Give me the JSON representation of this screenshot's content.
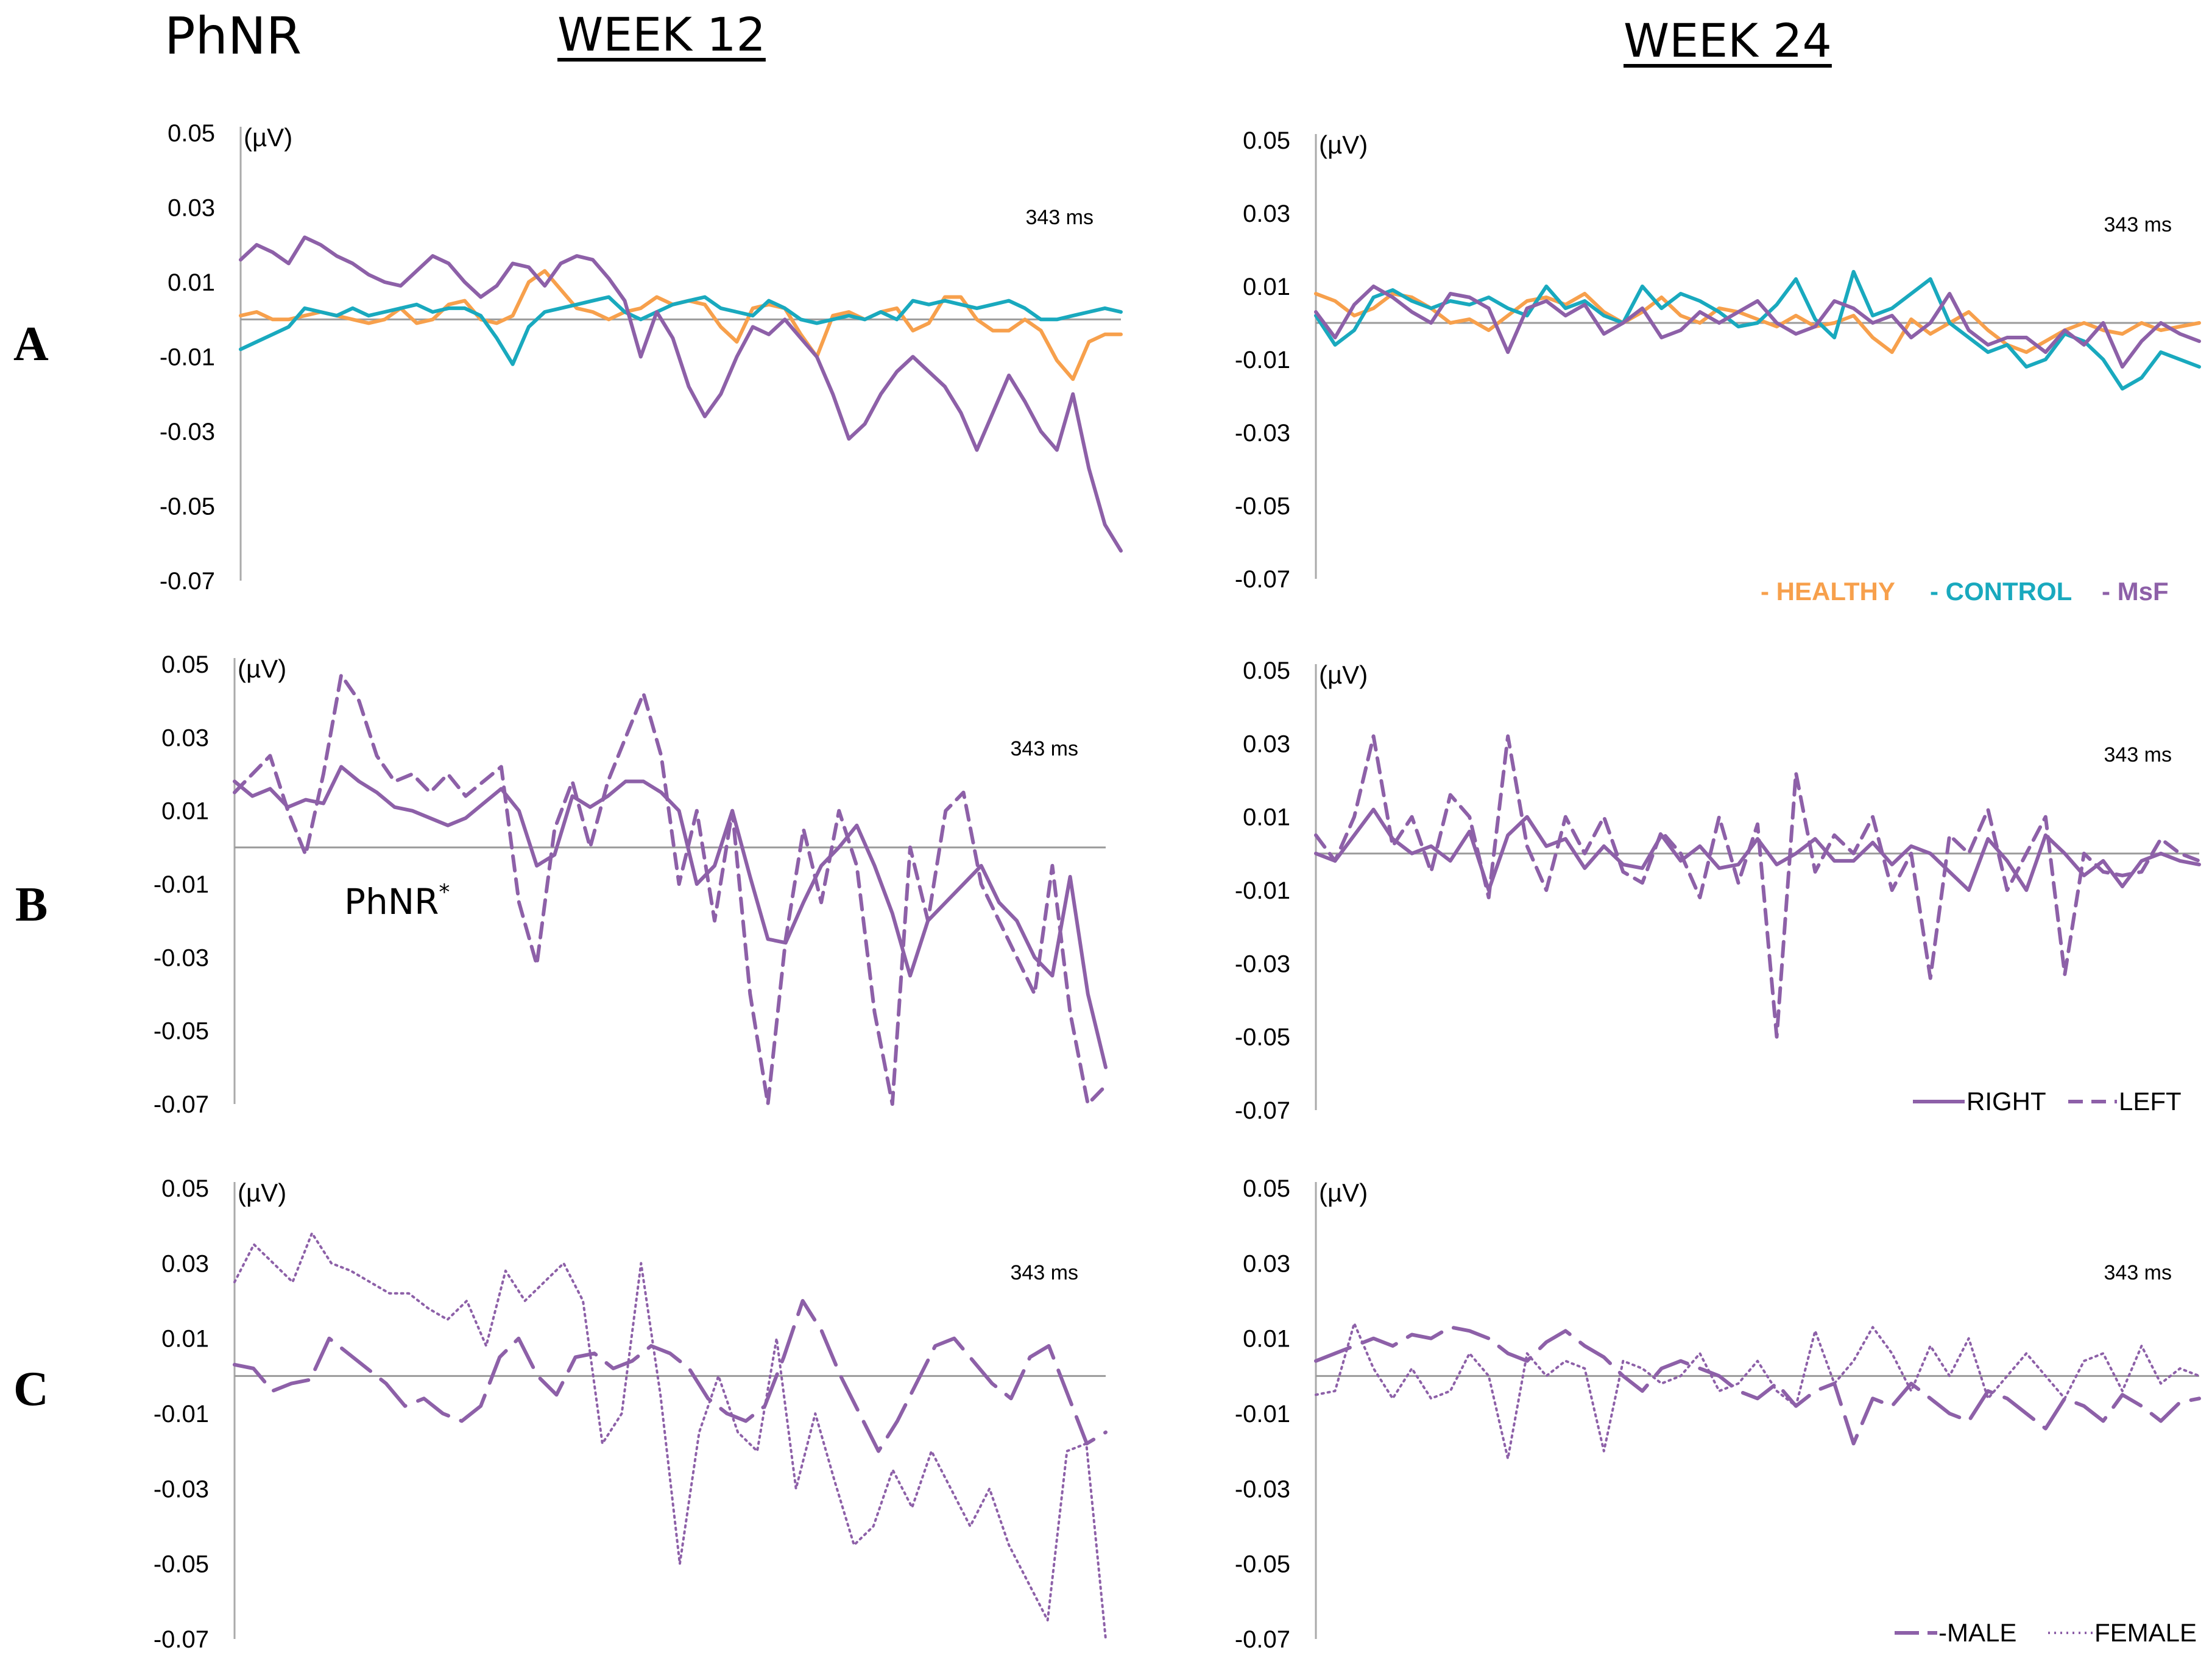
{
  "header": {
    "title": "PhNR",
    "week12": "WEEK 12",
    "week24": "WEEK 24"
  },
  "rows": {
    "a": "A",
    "b": "B",
    "c": "C"
  },
  "colors": {
    "healthy": "#F7A04C",
    "control": "#19A9BE",
    "msf": "#8D60A8",
    "axis": "#AAAAAA",
    "zero": "#9A9A9A"
  },
  "chart_data": [
    {
      "id": "A12",
      "type": "line",
      "ylabel": "(µV)",
      "ylim": [
        -0.07,
        0.05
      ],
      "yticks": [
        "0.05",
        "0.03",
        "0.01",
        "-0.01",
        "-0.03",
        "-0.05",
        "-0.07"
      ],
      "annotation": "343 ms",
      "x_range_ms": [
        0,
        343
      ],
      "series": [
        {
          "name": "HEALTHY",
          "style": "solid",
          "color": "#F7A04C",
          "values": [
            0.001,
            0.002,
            0.0,
            0.0,
            0.001,
            0.002,
            0.001,
            0.0,
            -0.001,
            0.0,
            0.003,
            -0.001,
            0.0,
            0.004,
            0.005,
            0.0,
            -0.001,
            0.001,
            0.01,
            0.013,
            0.008,
            0.003,
            0.002,
            0.0,
            0.002,
            0.003,
            0.006,
            0.004,
            0.005,
            0.004,
            -0.002,
            -0.006,
            0.003,
            0.004,
            0.003,
            -0.004,
            -0.01,
            0.001,
            0.002,
            0.0,
            0.002,
            0.003,
            -0.003,
            -0.001,
            0.006,
            0.006,
            0.0,
            -0.003,
            -0.003,
            0.0,
            -0.003,
            -0.011,
            -0.016,
            -0.006,
            -0.004,
            -0.004
          ]
        },
        {
          "name": "CONTROL",
          "style": "solid",
          "color": "#19A9BE",
          "values": [
            -0.008,
            -0.006,
            -0.004,
            -0.002,
            0.003,
            0.002,
            0.001,
            0.003,
            0.001,
            0.002,
            0.003,
            0.004,
            0.002,
            0.003,
            0.003,
            0.001,
            -0.005,
            -0.012,
            -0.002,
            0.002,
            0.003,
            0.004,
            0.005,
            0.006,
            0.002,
            0.0,
            0.002,
            0.004,
            0.005,
            0.006,
            0.003,
            0.002,
            0.001,
            0.005,
            0.003,
            0.0,
            -0.001,
            0.0,
            0.001,
            0.0,
            0.002,
            0.0,
            0.005,
            0.004,
            0.005,
            0.004,
            0.003,
            0.004,
            0.005,
            0.003,
            0.0,
            0.0,
            0.001,
            0.002,
            0.003,
            0.002
          ]
        },
        {
          "name": "MsF",
          "style": "solid",
          "color": "#8D60A8",
          "values": [
            0.016,
            0.02,
            0.018,
            0.015,
            0.022,
            0.02,
            0.017,
            0.015,
            0.012,
            0.01,
            0.009,
            0.013,
            0.017,
            0.015,
            0.01,
            0.006,
            0.009,
            0.015,
            0.014,
            0.009,
            0.015,
            0.017,
            0.016,
            0.011,
            0.005,
            -0.01,
            0.002,
            -0.005,
            -0.018,
            -0.026,
            -0.02,
            -0.01,
            -0.002,
            -0.004,
            0.0,
            -0.005,
            -0.01,
            -0.02,
            -0.032,
            -0.028,
            -0.02,
            -0.014,
            -0.01,
            -0.014,
            -0.018,
            -0.025,
            -0.035,
            -0.025,
            -0.015,
            -0.022,
            -0.03,
            -0.035,
            -0.02,
            -0.04,
            -0.055,
            -0.062
          ]
        }
      ]
    },
    {
      "id": "A24",
      "type": "line",
      "ylabel": "(µV)",
      "ylim": [
        -0.07,
        0.05
      ],
      "yticks": [
        "0.05",
        "0.03",
        "0.01",
        "-0.01",
        "-0.03",
        "-0.05",
        "-0.07"
      ],
      "annotation": "343 ms",
      "x_range_ms": [
        0,
        343
      ],
      "legend": [
        "- HEALTHY",
        "- CONTROL",
        "- MsF"
      ],
      "legend_position": "bottom-right",
      "series": [
        {
          "name": "HEALTHY",
          "style": "solid",
          "color": "#F7A04C",
          "values": [
            0.008,
            0.006,
            0.002,
            0.004,
            0.008,
            0.007,
            0.004,
            0.0,
            0.001,
            -0.002,
            0.002,
            0.006,
            0.007,
            0.005,
            0.008,
            0.003,
            0.0,
            0.003,
            0.007,
            0.002,
            0.0,
            0.004,
            0.003,
            0.001,
            -0.001,
            0.002,
            -0.001,
            0.0,
            0.002,
            -0.004,
            -0.008,
            0.001,
            -0.003,
            0.0,
            0.003,
            -0.002,
            -0.006,
            -0.008,
            -0.005,
            -0.002,
            0.0,
            -0.002,
            -0.003,
            0.0,
            -0.002,
            -0.001,
            0.0
          ]
        },
        {
          "name": "CONTROL",
          "style": "solid",
          "color": "#19A9BE",
          "values": [
            0.002,
            -0.006,
            -0.002,
            0.007,
            0.009,
            0.006,
            0.004,
            0.006,
            0.005,
            0.007,
            0.004,
            0.002,
            0.01,
            0.004,
            0.006,
            0.002,
            0.0,
            0.01,
            0.004,
            0.008,
            0.006,
            0.003,
            -0.001,
            0.0,
            0.005,
            0.012,
            0.001,
            -0.004,
            0.014,
            0.002,
            0.004,
            0.008,
            0.012,
            0.0,
            -0.004,
            -0.008,
            -0.006,
            -0.012,
            -0.01,
            -0.003,
            -0.005,
            -0.01,
            -0.018,
            -0.015,
            -0.008,
            -0.01,
            -0.012
          ]
        },
        {
          "name": "MsF",
          "style": "solid",
          "color": "#8D60A8",
          "values": [
            0.003,
            -0.004,
            0.005,
            0.01,
            0.007,
            0.003,
            0.0,
            0.008,
            0.007,
            0.004,
            -0.008,
            0.004,
            0.006,
            0.002,
            0.005,
            -0.003,
            0.0,
            0.004,
            -0.004,
            -0.002,
            0.003,
            0.0,
            0.003,
            0.006,
            0.0,
            -0.003,
            -0.001,
            0.006,
            0.004,
            0.0,
            0.002,
            -0.004,
            0.0,
            0.008,
            -0.002,
            -0.006,
            -0.004,
            -0.004,
            -0.008,
            -0.002,
            -0.006,
            0.0,
            -0.012,
            -0.005,
            0.0,
            -0.003,
            -0.005
          ]
        }
      ]
    },
    {
      "id": "B12",
      "type": "line",
      "ylabel": "(µV)",
      "ylim": [
        -0.07,
        0.05
      ],
      "yticks": [
        "0.05",
        "0.03",
        "0.01",
        "-0.01",
        "-0.03",
        "-0.05",
        "-0.07"
      ],
      "annotation": "343 ms",
      "x_range_ms": [
        0,
        343
      ],
      "callout": "PhNR",
      "series": [
        {
          "name": "RIGHT",
          "style": "solid",
          "color": "#8D60A8",
          "values": [
            0.018,
            0.014,
            0.016,
            0.011,
            0.013,
            0.012,
            0.022,
            0.018,
            0.015,
            0.011,
            0.01,
            0.008,
            0.006,
            0.008,
            0.012,
            0.016,
            0.01,
            -0.005,
            -0.002,
            0.014,
            0.011,
            0.014,
            0.018,
            0.018,
            0.015,
            0.01,
            -0.01,
            -0.005,
            0.01,
            -0.008,
            -0.025,
            -0.026,
            -0.015,
            -0.005,
            0.0,
            0.006,
            -0.005,
            -0.018,
            -0.035,
            -0.02,
            -0.015,
            -0.01,
            -0.005,
            -0.015,
            -0.02,
            -0.03,
            -0.035,
            -0.008,
            -0.04,
            -0.06
          ]
        },
        {
          "name": "LEFT",
          "style": "dashed",
          "color": "#8D60A8",
          "values": [
            0.015,
            0.02,
            0.025,
            0.01,
            -0.002,
            0.02,
            0.047,
            0.04,
            0.025,
            0.018,
            0.02,
            0.015,
            0.02,
            0.014,
            0.018,
            0.022,
            -0.015,
            -0.032,
            0.005,
            0.018,
            0.0,
            0.018,
            0.03,
            0.042,
            0.025,
            -0.01,
            0.01,
            -0.02,
            0.01,
            -0.04,
            -0.07,
            -0.025,
            0.005,
            -0.015,
            0.01,
            -0.005,
            -0.045,
            -0.07,
            0.0,
            -0.02,
            0.01,
            0.015,
            -0.01,
            -0.02,
            -0.03,
            -0.04,
            -0.005,
            -0.045,
            -0.07,
            -0.065
          ]
        }
      ]
    },
    {
      "id": "B24",
      "type": "line",
      "ylabel": "(µV)",
      "ylim": [
        -0.07,
        0.05
      ],
      "yticks": [
        "0.05",
        "0.03",
        "0.01",
        "-0.01",
        "-0.03",
        "-0.05",
        "-0.07"
      ],
      "annotation": "343 ms",
      "x_range_ms": [
        0,
        343
      ],
      "legend": [
        "RIGHT",
        "LEFT"
      ],
      "legend_position": "bottom-right",
      "series": [
        {
          "name": "RIGHT",
          "style": "solid",
          "color": "#8D60A8",
          "values": [
            0.0,
            -0.002,
            0.005,
            0.012,
            0.004,
            0.0,
            0.002,
            -0.002,
            0.006,
            -0.01,
            0.005,
            0.01,
            0.002,
            0.004,
            -0.004,
            0.002,
            -0.003,
            -0.004,
            0.005,
            -0.002,
            0.002,
            -0.004,
            -0.003,
            0.004,
            -0.003,
            0.0,
            0.004,
            -0.002,
            -0.002,
            0.003,
            -0.003,
            0.002,
            0.0,
            -0.005,
            -0.01,
            0.004,
            -0.002,
            -0.01,
            0.005,
            0.0,
            -0.006,
            -0.002,
            -0.009,
            -0.002,
            0.0,
            -0.002,
            -0.003
          ]
        },
        {
          "name": "LEFT",
          "style": "dashed",
          "color": "#8D60A8",
          "values": [
            0.005,
            -0.002,
            0.01,
            0.032,
            0.002,
            0.01,
            -0.005,
            0.016,
            0.01,
            -0.012,
            0.032,
            0.002,
            -0.01,
            0.01,
            0.0,
            0.01,
            -0.005,
            -0.008,
            0.006,
            0.0,
            -0.012,
            0.01,
            -0.008,
            0.008,
            -0.05,
            0.022,
            -0.005,
            0.005,
            0.0,
            0.01,
            -0.01,
            0.0,
            -0.034,
            0.005,
            0.0,
            0.012,
            -0.01,
            0.0,
            0.01,
            -0.033,
            0.0,
            -0.005,
            -0.006,
            -0.005,
            0.004,
            0.0,
            -0.002
          ]
        }
      ]
    },
    {
      "id": "C12",
      "type": "line",
      "ylabel": "(µV)",
      "ylim": [
        -0.07,
        0.05
      ],
      "yticks": [
        "0.05",
        "0.03",
        "0.01",
        "-0.01",
        "-0.03",
        "-0.05",
        "-0.07"
      ],
      "annotation": "343 ms",
      "x_range_ms": [
        0,
        343
      ],
      "series": [
        {
          "name": "MALE",
          "style": "longdash",
          "color": "#8D60A8",
          "values": [
            0.003,
            0.002,
            -0.004,
            -0.002,
            -0.001,
            0.01,
            0.006,
            0.002,
            -0.002,
            -0.008,
            -0.006,
            -0.01,
            -0.012,
            -0.008,
            0.005,
            0.01,
            0.0,
            -0.005,
            0.005,
            0.006,
            0.002,
            0.004,
            0.008,
            0.006,
            0.002,
            -0.006,
            -0.01,
            -0.012,
            -0.008,
            0.005,
            0.02,
            0.012,
            0.0,
            -0.01,
            -0.02,
            -0.012,
            -0.002,
            0.008,
            0.01,
            0.004,
            -0.002,
            -0.006,
            0.005,
            0.008,
            -0.005,
            -0.018,
            -0.015
          ]
        },
        {
          "name": "FEMALE",
          "style": "dotted",
          "color": "#8D60A8",
          "values": [
            0.025,
            0.035,
            0.03,
            0.025,
            0.038,
            0.03,
            0.028,
            0.025,
            0.022,
            0.022,
            0.018,
            0.015,
            0.02,
            0.008,
            0.028,
            0.02,
            0.025,
            0.03,
            0.02,
            -0.018,
            -0.01,
            0.03,
            -0.005,
            -0.05,
            -0.015,
            0.0,
            -0.015,
            -0.02,
            0.01,
            -0.03,
            -0.01,
            -0.028,
            -0.045,
            -0.04,
            -0.025,
            -0.035,
            -0.02,
            -0.03,
            -0.04,
            -0.03,
            -0.045,
            -0.055,
            -0.065,
            -0.02,
            -0.018,
            -0.07
          ]
        }
      ]
    },
    {
      "id": "C24",
      "type": "line",
      "ylabel": "(µV)",
      "ylim": [
        -0.07,
        0.05
      ],
      "yticks": [
        "0.05",
        "0.03",
        "0.01",
        "-0.01",
        "-0.03",
        "-0.05",
        "-0.07"
      ],
      "annotation": "343 ms",
      "x_range_ms": [
        0,
        343
      ],
      "legend": [
        "-MALE",
        "FEMALE"
      ],
      "legend_position": "bottom-right",
      "series": [
        {
          "name": "MALE",
          "style": "longdash",
          "color": "#8D60A8",
          "values": [
            0.004,
            0.006,
            0.008,
            0.01,
            0.008,
            0.011,
            0.01,
            0.013,
            0.012,
            0.01,
            0.006,
            0.004,
            0.009,
            0.012,
            0.008,
            0.005,
            0.0,
            -0.004,
            0.002,
            0.004,
            0.002,
            0.0,
            -0.004,
            -0.006,
            -0.002,
            -0.008,
            -0.004,
            -0.002,
            -0.018,
            -0.006,
            -0.008,
            -0.002,
            -0.006,
            -0.01,
            -0.012,
            -0.004,
            -0.006,
            -0.01,
            -0.014,
            -0.006,
            -0.008,
            -0.012,
            -0.005,
            -0.008,
            -0.012,
            -0.007,
            -0.006
          ]
        },
        {
          "name": "FEMALE",
          "style": "dotted",
          "color": "#8D60A8",
          "values": [
            -0.005,
            -0.004,
            0.014,
            0.002,
            -0.006,
            0.002,
            -0.006,
            -0.004,
            0.006,
            0.0,
            -0.022,
            0.006,
            0.0,
            0.004,
            0.002,
            -0.02,
            0.004,
            0.002,
            -0.002,
            0.0,
            0.006,
            -0.004,
            -0.002,
            0.004,
            -0.004,
            -0.008,
            0.012,
            -0.002,
            0.004,
            0.013,
            0.006,
            -0.004,
            0.008,
            0.0,
            0.01,
            -0.006,
            0.0,
            0.006,
            0.0,
            -0.006,
            0.004,
            0.006,
            -0.004,
            0.008,
            -0.002,
            0.002,
            0.0
          ]
        }
      ]
    }
  ]
}
